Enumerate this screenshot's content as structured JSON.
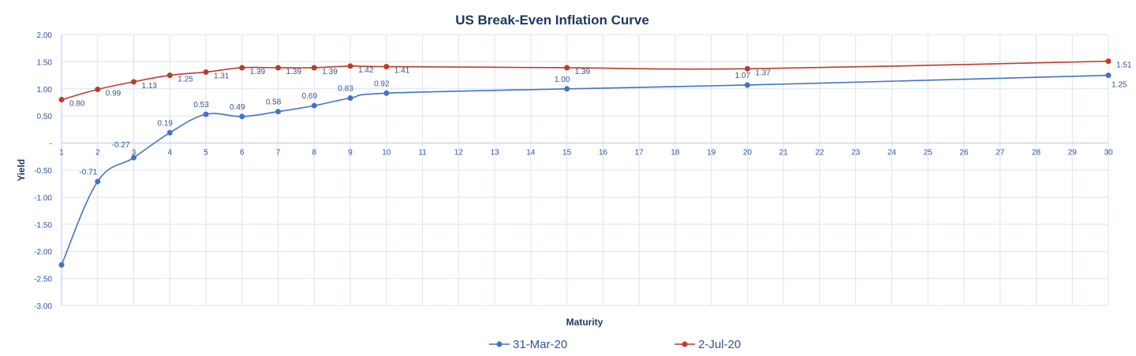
{
  "chart_data": {
    "type": "line",
    "title": "US Break-Even Inflation Curve",
    "xlabel": "Maturity",
    "ylabel": "Yield",
    "categories": [
      "1",
      "2",
      "3",
      "4",
      "5",
      "6",
      "7",
      "8",
      "9",
      "10",
      "11",
      "12",
      "13",
      "14",
      "15",
      "16",
      "17",
      "18",
      "19",
      "20",
      "21",
      "22",
      "23",
      "24",
      "25",
      "26",
      "27",
      "28",
      "29",
      "30"
    ],
    "yticks": [
      "2.00",
      "1.50",
      "1.00",
      "0.50",
      "-",
      "-0.50",
      "-1.00",
      "-1.50",
      "-2.00",
      "-2.50",
      "-3.00"
    ],
    "ylim": [
      -3,
      2
    ],
    "grid": true,
    "legend_position": "bottom",
    "series": [
      {
        "name": "31-Mar-20",
        "color": "#4472c4",
        "x": [
          1,
          2,
          3,
          4,
          5,
          6,
          7,
          8,
          9,
          10,
          15,
          20,
          30
        ],
        "values": [
          -2.25,
          -0.71,
          -0.27,
          0.19,
          0.53,
          0.49,
          0.58,
          0.69,
          0.83,
          0.92,
          1.0,
          1.07,
          1.25
        ],
        "labels": [
          "",
          "-0.71",
          "-0.27",
          "0.19",
          "0.53",
          "0.49",
          "0.58",
          "0.69",
          "0.83",
          "0.92",
          "1.00",
          "1.07",
          "1.25"
        ]
      },
      {
        "name": "2-Jul-20",
        "color": "#c0392b",
        "x": [
          1,
          2,
          3,
          4,
          5,
          6,
          7,
          8,
          9,
          10,
          15,
          20,
          30
        ],
        "values": [
          0.8,
          0.99,
          1.13,
          1.25,
          1.31,
          1.39,
          1.39,
          1.39,
          1.42,
          1.41,
          1.39,
          1.37,
          1.51
        ],
        "labels": [
          "0.80",
          "0.99",
          "1.13",
          "1.25",
          "1.31",
          "1.39",
          "1.39",
          "1.39",
          "1.42",
          "1.41",
          "1.39",
          "1.37",
          "1.51"
        ]
      }
    ]
  }
}
